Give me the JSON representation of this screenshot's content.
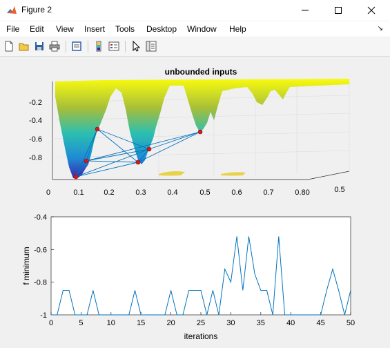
{
  "window": {
    "title": "Figure 2"
  },
  "menu": [
    "File",
    "Edit",
    "View",
    "Insert",
    "Tools",
    "Desktop",
    "Window",
    "Help"
  ],
  "toolbar_icons": [
    "new-figure-icon",
    "open-file-icon",
    "save-icon",
    "print-icon",
    "print-preview-icon",
    "colorbar-icon",
    "legend-icon",
    "pointer-icon",
    "property-editor-icon"
  ],
  "colors": {
    "line": "#0072bd",
    "marker": "#d7191c",
    "surface_low": "#3e26a8",
    "surface_mid": "#2bbfb0",
    "surface_high": "#f9fb0e"
  },
  "top_plot": {
    "title": "unbounded inputs",
    "zticks": [
      "-0.2",
      "-0.4",
      "-0.6",
      "-0.8"
    ],
    "xticks": [
      "0",
      "0.1",
      "0.2",
      "0.3",
      "0.4",
      "0.5",
      "0.6",
      "0.7",
      "0.80"
    ],
    "yticks": [
      "0.5"
    ]
  },
  "chart_data": {
    "type": "line",
    "xlabel": "iterations",
    "ylabel": "f minimum",
    "xlim": [
      0,
      50
    ],
    "ylim": [
      -1,
      -0.4
    ],
    "xticks": [
      "0",
      "5",
      "10",
      "15",
      "20",
      "25",
      "30",
      "35",
      "40",
      "45",
      "50"
    ],
    "yticks": [
      "-0.4",
      "-0.6",
      "-0.8",
      "-1"
    ],
    "x": [
      0,
      1,
      2,
      3,
      4,
      5,
      6,
      7,
      8,
      9,
      10,
      11,
      12,
      13,
      14,
      15,
      16,
      17,
      18,
      19,
      20,
      21,
      22,
      23,
      24,
      25,
      26,
      27,
      28,
      29,
      30,
      31,
      32,
      33,
      34,
      35,
      36,
      37,
      38,
      39,
      40,
      41,
      42,
      43,
      44,
      45,
      46,
      47,
      48,
      49,
      50
    ],
    "y": [
      -1,
      -1,
      -0.85,
      -0.85,
      -1,
      -1,
      -1,
      -0.85,
      -1,
      -1,
      -1,
      -1,
      -1,
      -1,
      -0.85,
      -1,
      -1,
      -1,
      -1,
      -1,
      -0.85,
      -1,
      -1,
      -0.85,
      -0.85,
      -0.85,
      -1,
      -0.85,
      -1,
      -0.72,
      -0.8,
      -0.52,
      -0.85,
      -0.52,
      -0.75,
      -0.85,
      -0.85,
      -1,
      -0.52,
      -1,
      -1,
      -1,
      -1,
      -1,
      -1,
      -1,
      -0.85,
      -0.72,
      -0.85,
      -1,
      -0.85
    ]
  }
}
